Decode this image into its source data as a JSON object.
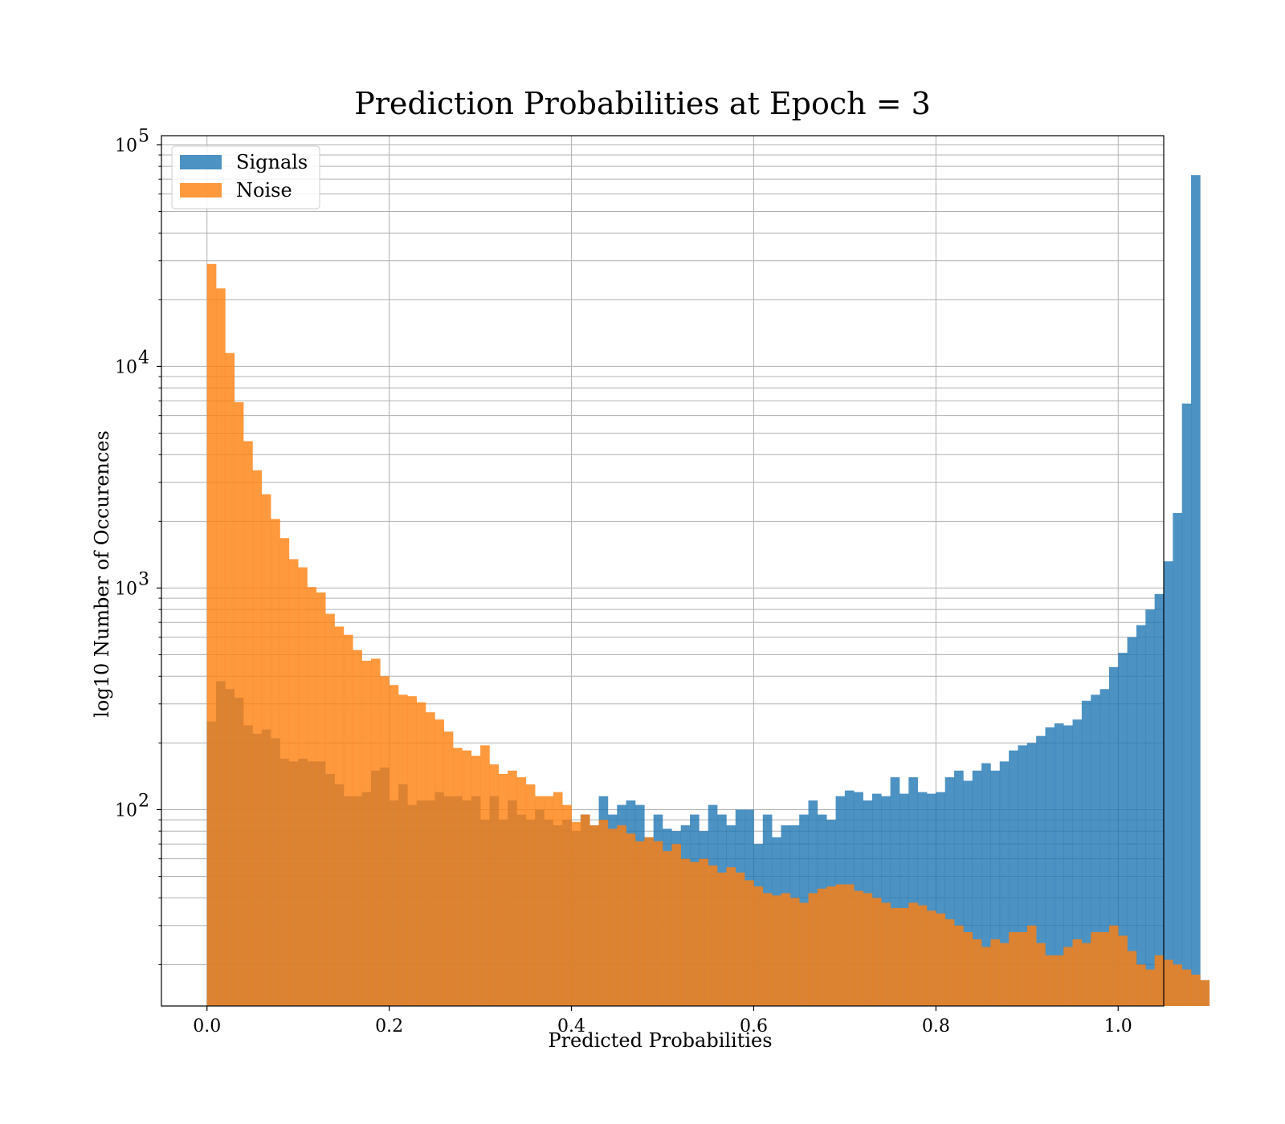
{
  "chart_data": {
    "type": "histogram",
    "title": "Prediction Probabilities at Epoch = 3",
    "xlabel": "Predicted Probabilities",
    "ylabel": "log10 Number of Occurences",
    "xlim": [
      -0.05,
      1.05
    ],
    "ylim": [
      13,
      110000
    ],
    "yscale": "log",
    "grid": true,
    "legend_position": "top-left",
    "xticks": [
      "0.0",
      "0.2",
      "0.4",
      "0.6",
      "0.8",
      "1.0"
    ],
    "xtick_values": [
      0.0,
      0.2,
      0.4,
      0.6,
      0.8,
      1.0
    ],
    "yticks": [
      {
        "value": 100,
        "base": "10",
        "exp": "2"
      },
      {
        "value": 1000,
        "base": "10",
        "exp": "3"
      },
      {
        "value": 10000,
        "base": "10",
        "exp": "4"
      },
      {
        "value": 100000,
        "base": "10",
        "exp": "5"
      }
    ],
    "series": [
      {
        "name": "Signals",
        "color": "#1f77b4",
        "opacity": 0.8,
        "bin_start": 0.0,
        "bin_width": 0.01,
        "counts": [
          250,
          380,
          350,
          320,
          240,
          220,
          230,
          210,
          170,
          165,
          170,
          165,
          165,
          145,
          130,
          115,
          115,
          120,
          150,
          155,
          110,
          130,
          105,
          110,
          110,
          120,
          115,
          115,
          110,
          115,
          90,
          115,
          90,
          110,
          95,
          90,
          100,
          90,
          85,
          90,
          80,
          95,
          85,
          115,
          95,
          105,
          110,
          105,
          75,
          95,
          82,
          80,
          85,
          95,
          80,
          105,
          95,
          85,
          100,
          100,
          70,
          95,
          75,
          85,
          85,
          95,
          110,
          95,
          90,
          115,
          122,
          120,
          110,
          118,
          115,
          140,
          118,
          140,
          120,
          118,
          120,
          140,
          150,
          135,
          150,
          162,
          150,
          165,
          185,
          195,
          200,
          215,
          235,
          245,
          240,
          255,
          310,
          330,
          350,
          440,
          510,
          600,
          680,
          800,
          940,
          1320,
          2180,
          6800,
          73000,
          17
        ]
      },
      {
        "name": "Noise",
        "color": "#ff7f0e",
        "opacity": 0.8,
        "bin_start": 0.0,
        "bin_width": 0.01,
        "counts": [
          29000,
          22500,
          11500,
          6900,
          4600,
          3400,
          2650,
          2050,
          1680,
          1350,
          1240,
          1010,
          955,
          765,
          670,
          615,
          525,
          470,
          480,
          400,
          365,
          330,
          325,
          305,
          275,
          255,
          225,
          190,
          185,
          175,
          195,
          160,
          145,
          150,
          140,
          130,
          115,
          115,
          120,
          105,
          88,
          95,
          85,
          90,
          82,
          85,
          78,
          72,
          75,
          72,
          65,
          70,
          60,
          58,
          60,
          56,
          52,
          55,
          52,
          48,
          45,
          42,
          41,
          42,
          40,
          38,
          42,
          44,
          45,
          46,
          46,
          43,
          42,
          40,
          38,
          36,
          36,
          38,
          37,
          35,
          34,
          32,
          30,
          28,
          26,
          24,
          26,
          25,
          28,
          28,
          30,
          25,
          22,
          22,
          24,
          26,
          25,
          28,
          28,
          30,
          27,
          23,
          20,
          19,
          22,
          21,
          20,
          19,
          18,
          17
        ]
      }
    ]
  }
}
